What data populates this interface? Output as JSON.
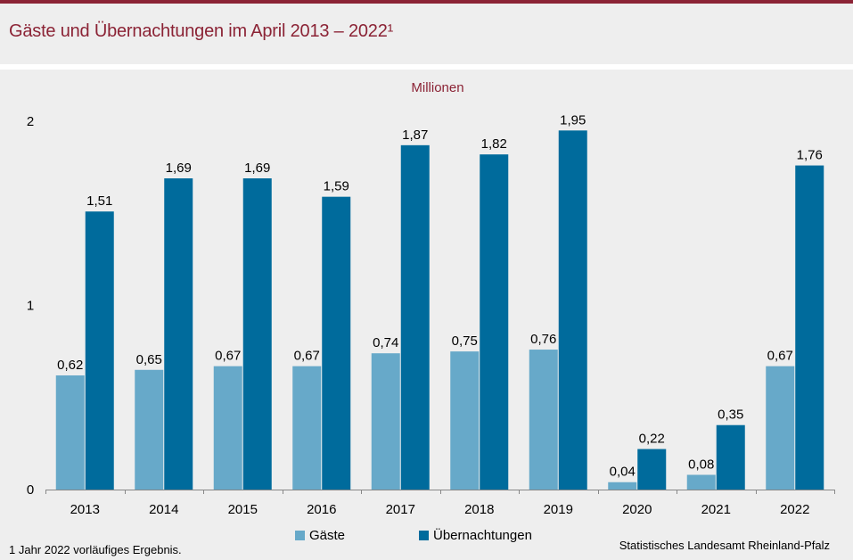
{
  "title": "Gäste und Übernachtungen im April 2013 – 2022¹",
  "footnote": "1 Jahr 2022 vorläufiges Ergebnis.",
  "source": "Statistisches Landesamt  Rheinland-Pfalz",
  "colors": {
    "brand": "#8b2335",
    "gaeste": "#67a9c9",
    "uebernachtungen": "#006b9c"
  },
  "chart_data": {
    "type": "bar",
    "title": "Gäste und Übernachtungen im April 2013 – 2022¹",
    "unit_label": "Millionen",
    "xlabel": "",
    "ylabel": "Millionen",
    "ylim": [
      0,
      2
    ],
    "yticks": [
      0,
      1,
      2
    ],
    "ytick_labels": [
      "0",
      "1",
      "2"
    ],
    "grid": false,
    "legend_position": "bottom",
    "categories": [
      "2013",
      "2014",
      "2015",
      "2016",
      "2017",
      "2018",
      "2019",
      "2020",
      "2021",
      "2022"
    ],
    "series": [
      {
        "name": "Gäste",
        "color": "#67a9c9",
        "values": [
          0.62,
          0.65,
          0.67,
          0.67,
          0.74,
          0.75,
          0.76,
          0.04,
          0.08,
          0.67
        ],
        "labels": [
          "0,62",
          "0,65",
          "0,67",
          "0,67",
          "0,74",
          "0,75",
          "0,76",
          "0,04",
          "0,08",
          "0,67"
        ]
      },
      {
        "name": "Übernachtungen",
        "color": "#006b9c",
        "values": [
          1.51,
          1.69,
          1.69,
          1.59,
          1.87,
          1.82,
          1.95,
          0.22,
          0.35,
          1.76
        ],
        "labels": [
          "1,51",
          "1,69",
          "1,69",
          "1,59",
          "1,87",
          "1,82",
          "1,95",
          "0,22",
          "0,35",
          "1,76"
        ]
      }
    ]
  }
}
